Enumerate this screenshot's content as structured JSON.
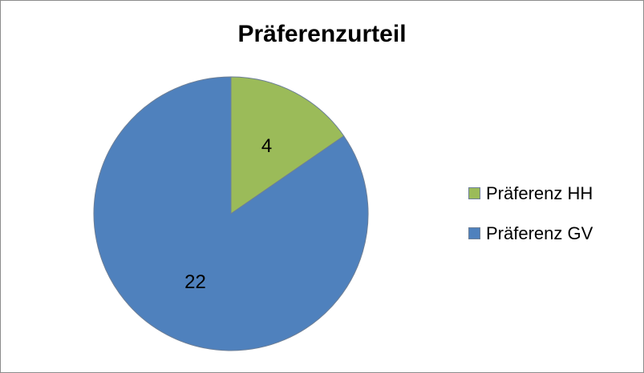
{
  "chart_data": {
    "type": "pie",
    "title": "Präferenzurteil",
    "categories": [
      "Präferenz HH",
      "Präferenz GV"
    ],
    "values": [
      4,
      22
    ],
    "colors": [
      "#9bbb59",
      "#4f81bd"
    ],
    "data_labels": [
      "4",
      "22"
    ],
    "legend": "right"
  }
}
